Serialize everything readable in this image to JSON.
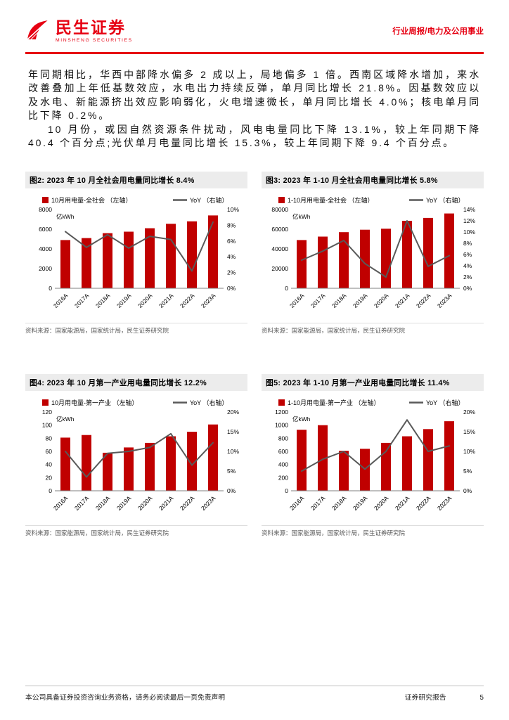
{
  "header": {
    "brand": "民生证券",
    "brand_en": "MINSHENG SECURITIES",
    "report_type": "行业周报/电力及公用事业"
  },
  "body": {
    "para1": "年同期相比，华西中部降水偏多 2 成以上，局地偏多 1 倍。西南区域降水增加，来水改善叠加上年低基数效应，水电出力持续反弹，单月同比增长 21.8%。因基数效应以及水电、新能源挤出效应影响弱化，火电增速微长，单月同比增长 4.0%；核电单月同比下降 0.2%。",
    "para2": "10 月份，或因自然资源条件扰动，风电电量同比下降 13.1%，较上年同期下降 40.4 个百分点;光伏单月电量同比增长 15.3%，较上年同期下降 9.4 个百分点。"
  },
  "colors": {
    "bar": "#C00000",
    "line": "#595959",
    "accent": "#E60012"
  },
  "chart_data": [
    {
      "type": "bar+line",
      "title": "图2: 2023 年 10 月全社会用电量同比增长 8.4%",
      "unit": "亿kWh",
      "categories": [
        "2016A",
        "2017A",
        "2018A",
        "2019A",
        "2020A",
        "2021A",
        "2022A",
        "2023A"
      ],
      "series": [
        {
          "name": "10月用电量-全社会 （左轴）",
          "kind": "bar",
          "axis": "left",
          "values": [
            4900,
            5100,
            5600,
            5750,
            6100,
            6550,
            6800,
            7400
          ]
        },
        {
          "name": "YoY （右轴）",
          "kind": "line",
          "axis": "right",
          "values": [
            7.2,
            5.2,
            6.8,
            5.1,
            6.6,
            6.2,
            2.2,
            8.4
          ]
        }
      ],
      "left_axis": {
        "min": 0,
        "max": 8000,
        "step": 2000
      },
      "right_axis": {
        "min": 0,
        "max": 10,
        "step": 2,
        "format": "percent"
      },
      "source": "资料来源：国家能源局，国家统计局，民生证券研究院"
    },
    {
      "type": "bar+line",
      "title": "图3: 2023 年 1-10 月全社会用电量同比增长 5.8%",
      "unit": "亿kWh",
      "categories": [
        "2016A",
        "2017A",
        "2018A",
        "2019A",
        "2020A",
        "2021A",
        "2022A",
        "2023A"
      ],
      "series": [
        {
          "name": "1-10月用电量-全社会 （左轴）",
          "kind": "bar",
          "axis": "left",
          "values": [
            49000,
            52500,
            57000,
            59500,
            60500,
            68500,
            71500,
            76000
          ]
        },
        {
          "name": "YoY （右轴）",
          "kind": "line",
          "axis": "right",
          "values": [
            5.0,
            6.6,
            8.5,
            4.4,
            2.0,
            12.0,
            3.9,
            5.8
          ]
        }
      ],
      "left_axis": {
        "min": 0,
        "max": 80000,
        "step": 20000
      },
      "right_axis": {
        "min": 0,
        "max": 14,
        "step": 2,
        "format": "percent"
      },
      "source": "资料来源：国家能源局，国家统计局，民生证券研究院"
    },
    {
      "type": "bar+line",
      "title": "图4: 2023 年 10 月第一产业用电量同比增长 12.2%",
      "unit": "亿kWh",
      "categories": [
        "2016A",
        "2017A",
        "2018A",
        "2019A",
        "2020A",
        "2021A",
        "2022A",
        "2023A"
      ],
      "series": [
        {
          "name": "10月用电量-第一产业 （左轴）",
          "kind": "bar",
          "axis": "left",
          "values": [
            81,
            85,
            58,
            66,
            73,
            83,
            90,
            101
          ]
        },
        {
          "name": "YoY （右轴）",
          "kind": "line",
          "axis": "right",
          "values": [
            10.0,
            3.5,
            9.5,
            10.0,
            11.0,
            14.5,
            6.5,
            12.2
          ]
        }
      ],
      "left_axis": {
        "min": 0,
        "max": 120,
        "step": 20
      },
      "right_axis": {
        "min": 0,
        "max": 20,
        "step": 5,
        "format": "percent"
      },
      "source": "资料来源：国家能源局，国家统计局，民生证券研究院"
    },
    {
      "type": "bar+line",
      "title": "图5: 2023 年 1-10 月第一产业用电量同比增长 11.4%",
      "unit": "亿kWh",
      "categories": [
        "2016A",
        "2017A",
        "2018A",
        "2019A",
        "2020A",
        "2021A",
        "2022A",
        "2023A"
      ],
      "series": [
        {
          "name": "1-10月用电量-第一产业 （左轴）",
          "kind": "bar",
          "axis": "left",
          "values": [
            930,
            1000,
            610,
            640,
            730,
            830,
            940,
            1060
          ]
        },
        {
          "name": "YoY （右轴）",
          "kind": "line",
          "axis": "right",
          "values": [
            5.0,
            8.0,
            10.0,
            5.5,
            10.0,
            18.0,
            10.0,
            11.4
          ]
        }
      ],
      "left_axis": {
        "min": 0,
        "max": 1200,
        "step": 200
      },
      "right_axis": {
        "min": 0,
        "max": 20,
        "step": 5,
        "format": "percent"
      },
      "source": "资料来源：国家能源局，国家统计局，民生证券研究院"
    }
  ],
  "footer": {
    "disclaimer": "本公司具备证券投资咨询业务资格，请务必阅读最后一页免责声明",
    "report_label": "证券研究报告",
    "page_number": "5"
  }
}
